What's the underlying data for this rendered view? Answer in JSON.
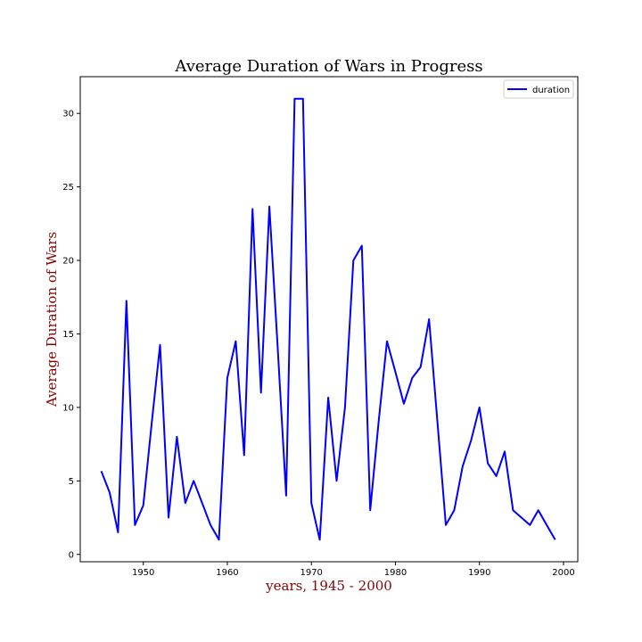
{
  "chart_data": {
    "type": "line",
    "title": "Average Duration of Wars in Progress",
    "xlabel": "years, 1945 - 2000",
    "ylabel": "Average Duration of Wars",
    "xlim": [
      1942.5,
      2001.7
    ],
    "ylim": [
      -0.5,
      32.5
    ],
    "x_ticks": [
      1950,
      1960,
      1970,
      1980,
      1990,
      2000
    ],
    "y_ticks": [
      0,
      5,
      10,
      15,
      20,
      25,
      30
    ],
    "grid": false,
    "legend": {
      "position": "top-right",
      "entries": [
        "duration"
      ]
    },
    "series": [
      {
        "name": "duration",
        "color": "#0000ff",
        "x": [
          1945,
          1946,
          1947,
          1948,
          1949,
          1950,
          1951,
          1952,
          1953,
          1954,
          1955,
          1956,
          1957,
          1958,
          1959,
          1960,
          1961,
          1962,
          1963,
          1964,
          1965,
          1966,
          1967,
          1968,
          1969,
          1970,
          1971,
          1972,
          1973,
          1974,
          1975,
          1976,
          1977,
          1978,
          1979,
          1980,
          1981,
          1982,
          1983,
          1984,
          1985,
          1986,
          1987,
          1988,
          1989,
          1990,
          1991,
          1992,
          1993,
          1994,
          1995,
          1996,
          1997,
          1998,
          1999
        ],
        "y": [
          5.67,
          4.2,
          1.5,
          17.25,
          2.0,
          3.33,
          8.9,
          14.25,
          2.5,
          8.0,
          3.5,
          5.0,
          3.5,
          2.0,
          1.0,
          12.0,
          14.5,
          6.75,
          23.5,
          11.0,
          23.67,
          14.0,
          4.0,
          31.0,
          31.0,
          3.5,
          1.0,
          10.67,
          5.0,
          10.0,
          20.0,
          21.0,
          3.0,
          9.0,
          14.5,
          12.4,
          10.25,
          12.0,
          12.75,
          16.0,
          9.0,
          2.0,
          3.0,
          6.0,
          7.75,
          10.0,
          6.2,
          5.33,
          7.0,
          3.0,
          2.5,
          2.0,
          3.0,
          2.0,
          1.0
        ]
      }
    ]
  }
}
